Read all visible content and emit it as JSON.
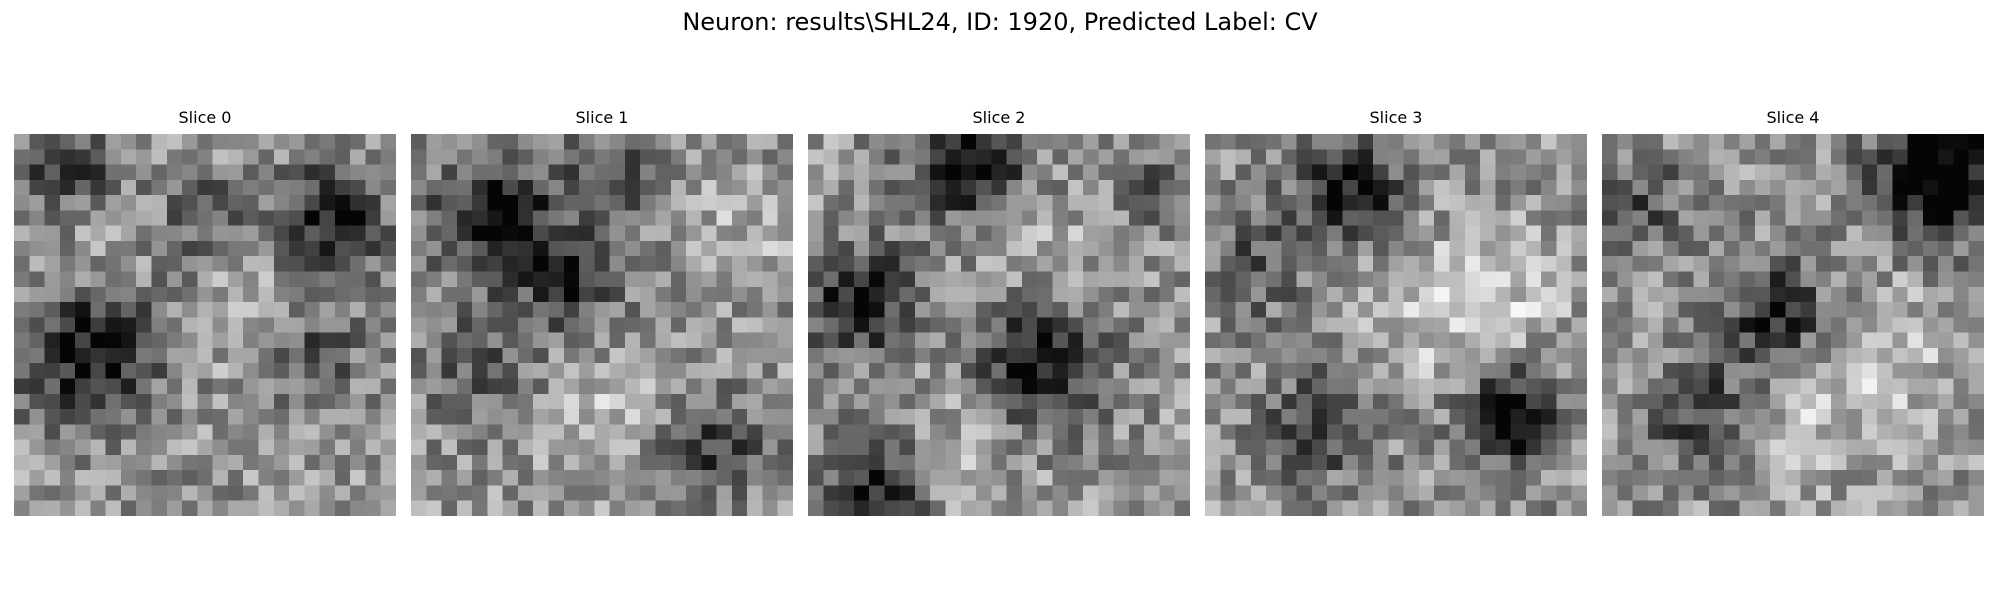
{
  "figure": {
    "suptitle": "Neuron: results\\SHL24, ID: 1920, Predicted Label: CV",
    "colormap": "gray",
    "grid_size": 25
  },
  "slices": [
    {
      "title": "Slice 0",
      "dark_spots": [
        [
          4.5,
          13.5,
          3.2,
          0.55
        ],
        [
          20,
          5,
          2.5,
          0.5
        ],
        [
          19,
          14,
          2.2,
          0.35
        ],
        [
          3,
          1.5,
          2.5,
          0.35
        ],
        [
          12,
          5,
          2,
          0.25
        ]
      ],
      "bright_spots": [
        [
          16,
          12,
          3,
          0.15
        ],
        [
          4,
          8,
          3,
          0.12
        ]
      ]
    },
    {
      "title": "Slice 1",
      "dark_spots": [
        [
          5,
          5,
          3,
          0.5
        ],
        [
          10,
          9,
          2.5,
          0.35
        ],
        [
          19,
          20,
          2.5,
          0.35
        ],
        [
          13,
          2,
          2,
          0.3
        ],
        [
          4,
          15,
          2.5,
          0.25
        ]
      ],
      "bright_spots": [
        [
          13,
          18,
          3,
          0.15
        ],
        [
          21,
          6,
          2.5,
          0.12
        ]
      ]
    },
    {
      "title": "Slice 2",
      "dark_spots": [
        [
          10,
          1.5,
          2.5,
          0.55
        ],
        [
          3,
          10.5,
          2.5,
          0.5
        ],
        [
          14.5,
          14,
          3,
          0.55
        ],
        [
          4,
          22.5,
          2.5,
          0.45
        ],
        [
          22,
          3,
          2,
          0.2
        ]
      ],
      "bright_spots": [
        [
          15,
          9,
          3,
          0.15
        ],
        [
          9,
          20,
          3,
          0.12
        ]
      ]
    },
    {
      "title": "Slice 3",
      "dark_spots": [
        [
          19.5,
          18,
          2.2,
          0.6
        ],
        [
          9,
          3.5,
          2.5,
          0.5
        ],
        [
          7,
          18.5,
          2.5,
          0.35
        ],
        [
          3,
          8,
          2.5,
          0.25
        ]
      ],
      "bright_spots": [
        [
          14,
          11,
          3.5,
          0.2
        ],
        [
          20,
          10,
          2.5,
          0.15
        ]
      ]
    },
    {
      "title": "Slice 4",
      "dark_spots": [
        [
          21.5,
          2,
          3,
          0.7
        ],
        [
          11,
          11.5,
          2.5,
          0.45
        ],
        [
          6,
          17.5,
          2.5,
          0.35
        ],
        [
          2,
          4,
          2.5,
          0.25
        ]
      ],
      "bright_spots": [
        [
          18,
          14,
          3.5,
          0.18
        ],
        [
          12,
          18,
          3,
          0.15
        ]
      ]
    }
  ]
}
